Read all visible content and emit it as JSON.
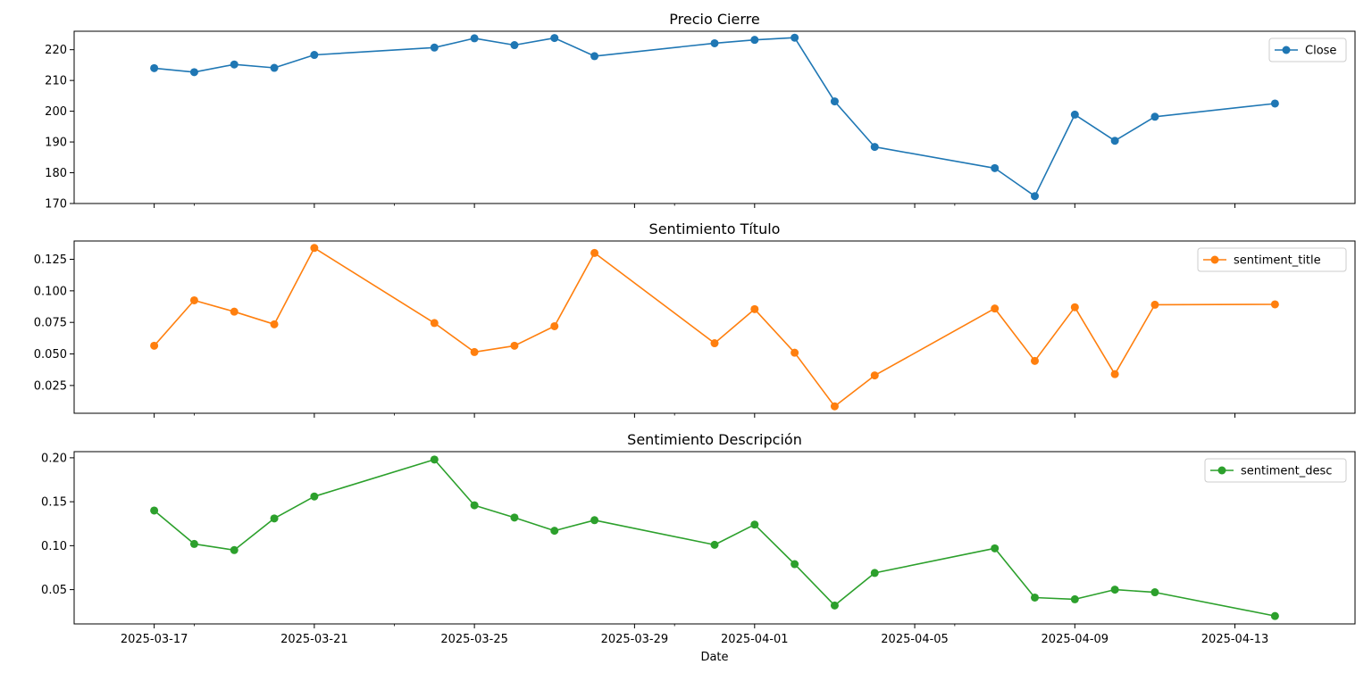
{
  "chart_data": [
    {
      "type": "line",
      "title": "Precio Cierre",
      "x": [
        "2025-03-17",
        "2025-03-18",
        "2025-03-19",
        "2025-03-20",
        "2025-03-21",
        "2025-03-24",
        "2025-03-25",
        "2025-03-26",
        "2025-03-27",
        "2025-03-28",
        "2025-03-31",
        "2025-04-01",
        "2025-04-02",
        "2025-04-03",
        "2025-04-04",
        "2025-04-07",
        "2025-04-08",
        "2025-04-09",
        "2025-04-10",
        "2025-04-11",
        "2025-04-14"
      ],
      "series": [
        {
          "name": "Close",
          "color": "#1f77b4",
          "values": [
            214.0,
            212.7,
            215.2,
            214.1,
            218.3,
            220.7,
            223.7,
            221.5,
            223.8,
            217.9,
            222.1,
            223.2,
            223.9,
            203.2,
            188.4,
            181.5,
            172.4,
            198.9,
            190.4,
            198.2,
            202.5
          ]
        }
      ],
      "yticks": [
        170,
        180,
        190,
        200,
        210,
        220
      ],
      "ytick_labels": [
        "170",
        "180",
        "190",
        "200",
        "210",
        "220"
      ],
      "ylim": [
        170,
        226
      ],
      "legend": "upper right"
    },
    {
      "type": "line",
      "title": "Sentimiento Título",
      "x": [
        "2025-03-17",
        "2025-03-18",
        "2025-03-19",
        "2025-03-20",
        "2025-03-21",
        "2025-03-24",
        "2025-03-25",
        "2025-03-26",
        "2025-03-27",
        "2025-03-28",
        "2025-03-31",
        "2025-04-01",
        "2025-04-02",
        "2025-04-03",
        "2025-04-04",
        "2025-04-07",
        "2025-04-08",
        "2025-04-09",
        "2025-04-10",
        "2025-04-11",
        "2025-04-14"
      ],
      "series": [
        {
          "name": "sentiment_title",
          "color": "#ff7f0e",
          "values": [
            0.0565,
            0.0925,
            0.0835,
            0.0735,
            0.134,
            0.0745,
            0.0515,
            0.0565,
            0.072,
            0.13,
            0.0585,
            0.0855,
            0.051,
            0.0085,
            0.033,
            0.086,
            0.0445,
            0.087,
            0.034,
            0.089,
            0.0893
          ]
        }
      ],
      "yticks": [
        0.025,
        0.05,
        0.075,
        0.1,
        0.125
      ],
      "ytick_labels": [
        "0.025",
        "0.050",
        "0.075",
        "0.100",
        "0.125"
      ],
      "ylim": [
        0.003,
        0.1395
      ],
      "legend": "upper right"
    },
    {
      "type": "line",
      "title": "Sentimiento Descripción",
      "x": [
        "2025-03-17",
        "2025-03-18",
        "2025-03-19",
        "2025-03-20",
        "2025-03-21",
        "2025-03-24",
        "2025-03-25",
        "2025-03-26",
        "2025-03-27",
        "2025-03-28",
        "2025-03-31",
        "2025-04-01",
        "2025-04-02",
        "2025-04-03",
        "2025-04-04",
        "2025-04-07",
        "2025-04-08",
        "2025-04-09",
        "2025-04-10",
        "2025-04-11",
        "2025-04-14"
      ],
      "series": [
        {
          "name": "sentiment_desc",
          "color": "#2ca02c",
          "values": [
            0.14,
            0.102,
            0.095,
            0.131,
            0.156,
            0.198,
            0.146,
            0.132,
            0.117,
            0.129,
            0.101,
            0.124,
            0.079,
            0.032,
            0.069,
            0.097,
            0.041,
            0.039,
            0.05,
            0.047,
            0.02
          ]
        }
      ],
      "yticks": [
        0.05,
        0.1,
        0.15,
        0.2
      ],
      "ytick_labels": [
        "0.05",
        "0.10",
        "0.15",
        "0.20"
      ],
      "ylim": [
        0.011,
        0.207
      ],
      "legend": "upper right"
    }
  ],
  "xaxis": {
    "label": "Date",
    "range": [
      "2025-03-15",
      "2025-04-16"
    ],
    "major_ticks": [
      "2025-03-17",
      "2025-03-21",
      "2025-03-25",
      "2025-03-29",
      "2025-04-01",
      "2025-04-05",
      "2025-04-09",
      "2025-04-13"
    ],
    "minor_ticks": [
      "2025-03-18",
      "2025-03-23",
      "2025-03-30",
      "2025-04-06",
      "2025-04-13"
    ]
  }
}
